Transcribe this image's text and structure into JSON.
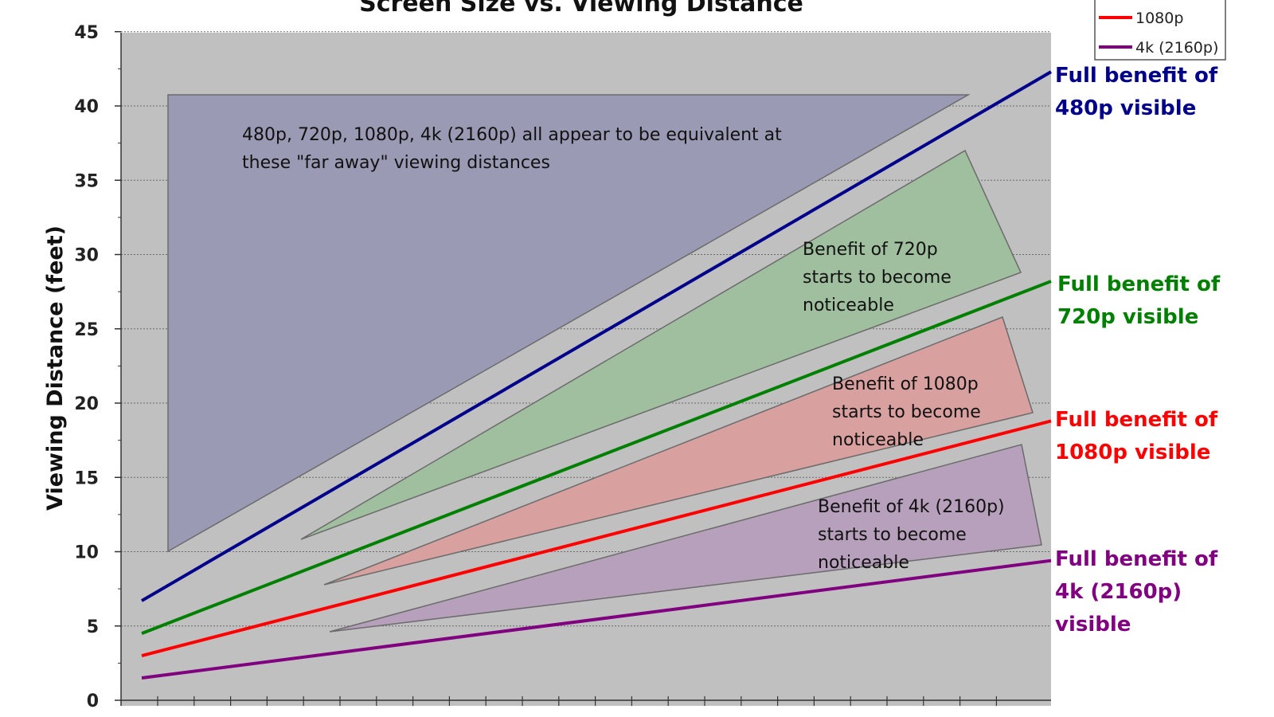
{
  "chart_data": {
    "type": "line",
    "title": "Screen Size vs. Viewing Distance",
    "ylabel": "Viewing Distance (feet)",
    "xlabel": "",
    "ylim": [
      0,
      45
    ],
    "yticks": [
      0,
      5,
      10,
      15,
      20,
      25,
      30,
      35,
      40,
      45
    ],
    "grid": true,
    "legend_position": "top-right",
    "legend": [
      {
        "name": "1080p",
        "color": "#ff0000"
      },
      {
        "name": "4k (2160p)",
        "color": "#800080"
      }
    ],
    "series": [
      {
        "name": "480p",
        "color": "#00008b",
        "start": 6.7,
        "end": 42.3,
        "end_label": [
          "Full benefit of",
          "480p visible"
        ]
      },
      {
        "name": "720p",
        "color": "#008000",
        "start": 4.5,
        "end": 28.2,
        "end_label": [
          "Full benefit of",
          "720p visible"
        ]
      },
      {
        "name": "1080p",
        "color": "#ff0000",
        "start": 3.0,
        "end": 18.8,
        "end_label": [
          "Full benefit of",
          "1080p visible"
        ]
      },
      {
        "name": "4k (2160p)",
        "color": "#800080",
        "start": 1.5,
        "end": 9.4,
        "end_label": [
          "Full benefit of",
          "4k (2160p)",
          "visible"
        ]
      }
    ],
    "regions": [
      {
        "name": "all-equivalent",
        "fill": "#9a9ab5",
        "text": [
          "480p, 720p, 1080p, 4k (2160p) all appear to be equivalent at",
          "these \"far away\" viewing distances"
        ]
      },
      {
        "name": "benefit-720p",
        "fill": "#9fbf9f",
        "text": [
          "Benefit of 720p",
          "starts to become",
          "noticeable"
        ]
      },
      {
        "name": "benefit-1080p",
        "fill": "#d9a0a0",
        "text": [
          "Benefit of 1080p",
          "starts to become",
          "noticeable"
        ]
      },
      {
        "name": "benefit-4k",
        "fill": "#b7a0bb",
        "text": [
          "Benefit of 4k (2160p)",
          "starts to become",
          "noticeable"
        ]
      }
    ]
  }
}
